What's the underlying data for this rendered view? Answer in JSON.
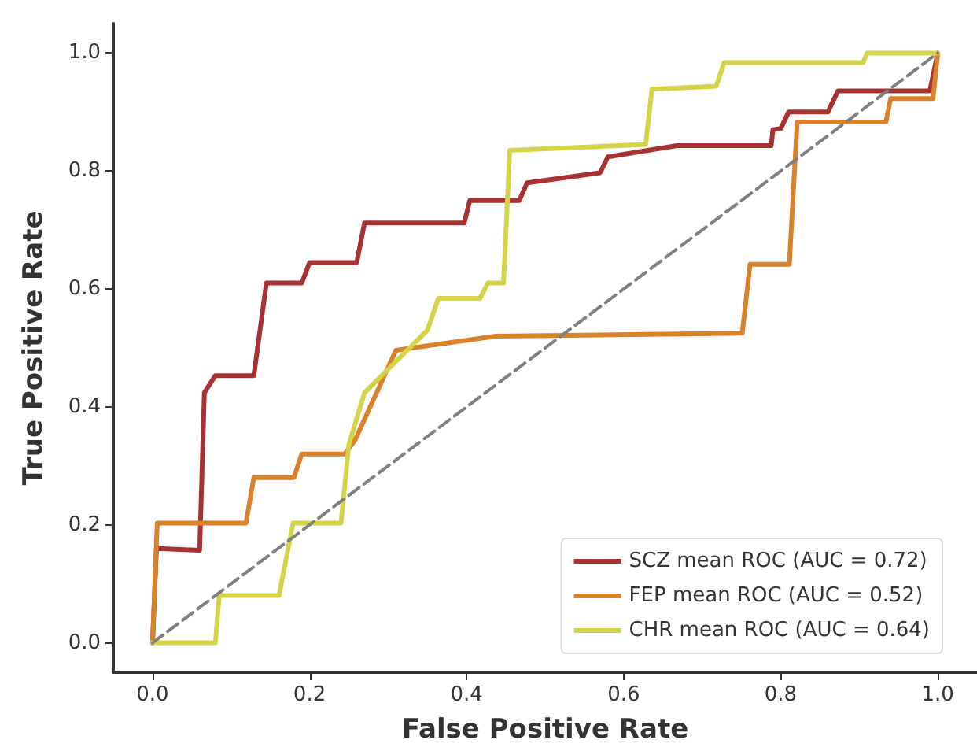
{
  "chart_data": {
    "type": "line",
    "xlabel": "False Positive Rate",
    "ylabel": "True Positive Rate",
    "xlim": [
      -0.05,
      1.05
    ],
    "ylim": [
      -0.05,
      1.05
    ],
    "xticks": [
      {
        "value": 0,
        "label": "0.0"
      },
      {
        "value": 0.2,
        "label": "0.2"
      },
      {
        "value": 0.4,
        "label": "0.4"
      },
      {
        "value": 0.6,
        "label": "0.6"
      },
      {
        "value": 0.8,
        "label": "0.8"
      },
      {
        "value": 1,
        "label": "1.0"
      }
    ],
    "yticks": [
      {
        "value": 0,
        "label": "0.0"
      },
      {
        "value": 0.2,
        "label": "0.2"
      },
      {
        "value": 0.4,
        "label": "0.4"
      },
      {
        "value": 0.6,
        "label": "0.6"
      },
      {
        "value": 0.8,
        "label": "0.8"
      },
      {
        "value": 1,
        "label": "1.0"
      }
    ],
    "grid": false,
    "legend": "bottom right",
    "marker": "none",
    "series": [
      {
        "name": "SCZ mean ROC (AUC = 0.72)",
        "color": "#a83232",
        "x": [
          0,
          0.005,
          0.06,
          0.066,
          0.08,
          0.129,
          0.145,
          0.19,
          0.2,
          0.26,
          0.27,
          0.397,
          0.404,
          0.467,
          0.477,
          0.57,
          0.58,
          0.668,
          0.672,
          0.788,
          0.79,
          0.8,
          0.81,
          0.86,
          0.873,
          0.99,
          1
        ],
        "values": [
          0,
          0.16,
          0.157,
          0.424,
          0.453,
          0.453,
          0.61,
          0.61,
          0.645,
          0.645,
          0.712,
          0.712,
          0.75,
          0.75,
          0.78,
          0.797,
          0.824,
          0.843,
          0.843,
          0.843,
          0.87,
          0.872,
          0.9,
          0.9,
          0.936,
          0.936,
          1
        ]
      },
      {
        "name": "FEP mean ROC (AUC = 0.52)",
        "color": "#d9822b",
        "x": [
          0,
          0.006,
          0.119,
          0.129,
          0.18,
          0.19,
          0.245,
          0.258,
          0.31,
          0.437,
          0.751,
          0.761,
          0.811,
          0.821,
          0.934,
          0.94,
          0.994,
          1
        ],
        "values": [
          0,
          0.203,
          0.203,
          0.28,
          0.28,
          0.32,
          0.32,
          0.344,
          0.496,
          0.52,
          0.525,
          0.642,
          0.642,
          0.883,
          0.883,
          0.923,
          0.923,
          1
        ]
      },
      {
        "name": "CHR mean ROC (AUC = 0.64)",
        "color": "#d4d44a",
        "x": [
          0,
          0.08,
          0.085,
          0.161,
          0.179,
          0.24,
          0.25,
          0.27,
          0.35,
          0.364,
          0.417,
          0.427,
          0.447,
          0.455,
          0.628,
          0.636,
          0.718,
          0.728,
          0.905,
          0.91,
          1
        ],
        "values": [
          0,
          0,
          0.08,
          0.08,
          0.203,
          0.203,
          0.336,
          0.424,
          0.53,
          0.584,
          0.584,
          0.61,
          0.61,
          0.835,
          0.845,
          0.939,
          0.944,
          0.984,
          0.984,
          1,
          1
        ]
      },
      {
        "color": "#808080",
        "line_style": "dashed",
        "x": [
          0,
          1
        ],
        "values": [
          0,
          1
        ]
      }
    ]
  }
}
